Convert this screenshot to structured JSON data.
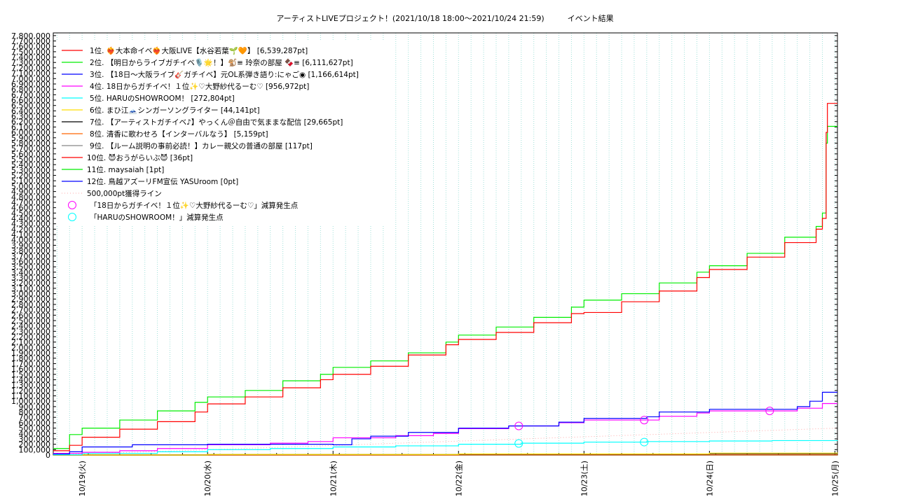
{
  "chart_data": {
    "type": "line",
    "title": "アーティストLIVEプロジェクト！(2021/10/18 18:00〜2021/10/24 21:59)　　　イベント結果",
    "xlabel": "",
    "ylabel": "",
    "ylim": [
      0,
      7850000
    ],
    "yticks_step": 100000,
    "grid": true,
    "legend_position": "top-left",
    "x_ticks": [
      "10/19(火)",
      "10/20(水)",
      "10/21(木)",
      "10/22(金)",
      "10/23(土)",
      "10/24(日)",
      "10/25(月)"
    ],
    "x_tick_positions": [
      1,
      2,
      3,
      4,
      5,
      6,
      7
    ],
    "xlim": [
      0.77,
      7.02
    ],
    "series": [
      {
        "name": "1位. ❤️‍🔥大本命イベ❤️‍🔥大阪LIVE【水谷若葉🌱🧡】 [6,539,287pt]",
        "color": "#ff0000",
        "points": [
          [
            0.77,
            80000
          ],
          [
            0.9,
            180000
          ],
          [
            1.0,
            330000
          ],
          [
            1.3,
            480000
          ],
          [
            1.6,
            620000
          ],
          [
            1.9,
            800000
          ],
          [
            2.0,
            950000
          ],
          [
            2.3,
            1080000
          ],
          [
            2.6,
            1250000
          ],
          [
            2.9,
            1400000
          ],
          [
            3.0,
            1500000
          ],
          [
            3.3,
            1650000
          ],
          [
            3.6,
            1860000
          ],
          [
            3.9,
            2050000
          ],
          [
            4.0,
            2150000
          ],
          [
            4.3,
            2280000
          ],
          [
            4.6,
            2460000
          ],
          [
            4.9,
            2630000
          ],
          [
            5.0,
            2650000
          ],
          [
            5.3,
            2850000
          ],
          [
            5.6,
            3050000
          ],
          [
            5.9,
            3300000
          ],
          [
            6.0,
            3450000
          ],
          [
            6.3,
            3680000
          ],
          [
            6.6,
            3950000
          ],
          [
            6.85,
            4200000
          ],
          [
            6.9,
            4400000
          ],
          [
            6.93,
            6000000
          ],
          [
            6.94,
            6539287
          ],
          [
            7.02,
            6539287
          ]
        ]
      },
      {
        "name": "2位. 【明日からライブガチイベ🎙️🌟！】🐒≡ 玲奈の部屋 🍫≡ [6,111,627pt]",
        "color": "#00ee00",
        "points": [
          [
            0.77,
            120000
          ],
          [
            0.9,
            380000
          ],
          [
            1.0,
            500000
          ],
          [
            1.3,
            650000
          ],
          [
            1.6,
            820000
          ],
          [
            1.9,
            980000
          ],
          [
            2.0,
            1080000
          ],
          [
            2.3,
            1200000
          ],
          [
            2.6,
            1380000
          ],
          [
            2.9,
            1500000
          ],
          [
            3.0,
            1630000
          ],
          [
            3.3,
            1750000
          ],
          [
            3.6,
            1900000
          ],
          [
            3.9,
            2100000
          ],
          [
            4.0,
            2230000
          ],
          [
            4.3,
            2380000
          ],
          [
            4.6,
            2560000
          ],
          [
            4.9,
            2750000
          ],
          [
            5.0,
            2880000
          ],
          [
            5.3,
            3000000
          ],
          [
            5.6,
            3200000
          ],
          [
            5.9,
            3400000
          ],
          [
            6.0,
            3520000
          ],
          [
            6.3,
            3750000
          ],
          [
            6.6,
            4050000
          ],
          [
            6.85,
            4250000
          ],
          [
            6.9,
            4500000
          ],
          [
            6.93,
            5800000
          ],
          [
            6.94,
            6111627
          ],
          [
            7.02,
            6111627
          ]
        ]
      },
      {
        "name": "3位. 【18日〜大阪ライブ🎸ガチイベ】元OL系弾き語り:にゃご◉ [1,166,614pt]",
        "color": "#0000ff",
        "points": [
          [
            0.77,
            20000
          ],
          [
            0.9,
            60000
          ],
          [
            1.0,
            150000
          ],
          [
            1.4,
            190000
          ],
          [
            2.0,
            200000
          ],
          [
            2.5,
            200000
          ],
          [
            3.0,
            190000
          ],
          [
            3.15,
            300000
          ],
          [
            3.3,
            350000
          ],
          [
            3.6,
            420000
          ],
          [
            4.0,
            500000
          ],
          [
            4.4,
            540000
          ],
          [
            4.8,
            610000
          ],
          [
            5.0,
            680000
          ],
          [
            5.5,
            710000
          ],
          [
            5.6,
            800000
          ],
          [
            6.0,
            850000
          ],
          [
            6.5,
            850000
          ],
          [
            6.7,
            900000
          ],
          [
            6.8,
            1000000
          ],
          [
            6.9,
            1166614
          ],
          [
            7.02,
            1166614
          ]
        ]
      },
      {
        "name": "4位. 18日からガチイベ！１位✨♡大野紗代るーむ♡ [956,972pt]",
        "color": "#ff00ff",
        "points": [
          [
            0.77,
            30000
          ],
          [
            1.0,
            50000
          ],
          [
            1.3,
            80000
          ],
          [
            1.6,
            120000
          ],
          [
            2.0,
            190000
          ],
          [
            2.5,
            220000
          ],
          [
            2.8,
            250000
          ],
          [
            3.0,
            320000
          ],
          [
            3.5,
            360000
          ],
          [
            3.8,
            400000
          ],
          [
            4.0,
            490000
          ],
          [
            4.4,
            540000
          ],
          [
            4.8,
            600000
          ],
          [
            5.0,
            650000
          ],
          [
            5.4,
            650000
          ],
          [
            5.6,
            720000
          ],
          [
            5.9,
            780000
          ],
          [
            6.0,
            820000
          ],
          [
            6.5,
            820000
          ],
          [
            6.7,
            870000
          ],
          [
            6.9,
            956972
          ],
          [
            7.02,
            956972
          ]
        ]
      },
      {
        "name": "5位. HARUのSHOWROOM！ [272,804pt]",
        "color": "#00ffff",
        "points": [
          [
            0.77,
            5000
          ],
          [
            1.0,
            30000
          ],
          [
            1.6,
            60000
          ],
          [
            2.0,
            100000
          ],
          [
            2.5,
            120000
          ],
          [
            3.0,
            150000
          ],
          [
            3.5,
            170000
          ],
          [
            4.0,
            200000
          ],
          [
            4.5,
            220000
          ],
          [
            5.0,
            240000
          ],
          [
            5.5,
            250000
          ],
          [
            6.0,
            260000
          ],
          [
            6.5,
            268000
          ],
          [
            7.02,
            272804
          ]
        ]
      },
      {
        "name": "6位. まひ江🗻シンガーソングライター [44,141pt]",
        "color": "#ffdd00",
        "points": [
          [
            0.77,
            0
          ],
          [
            2.0,
            10000
          ],
          [
            4.0,
            20000
          ],
          [
            6.0,
            35000
          ],
          [
            7.02,
            44141
          ]
        ]
      },
      {
        "name": "7位. 【アーティストガチイベ♪】やっくん＠自由で気ままな配信 [29,665pt]",
        "color": "#000000",
        "points": [
          [
            0.77,
            0
          ],
          [
            2.0,
            8000
          ],
          [
            4.0,
            15000
          ],
          [
            6.0,
            25000
          ],
          [
            7.02,
            29665
          ]
        ]
      },
      {
        "name": "8位. 清香に歌わせろ【インターバルなう】 [5,159pt]",
        "color": "#ff6600",
        "points": [
          [
            0.77,
            0
          ],
          [
            4.0,
            3000
          ],
          [
            7.02,
            5159
          ]
        ]
      },
      {
        "name": "9位. 【ルーム説明の事前必読！】カレー親父の普通の部屋 [117pt]",
        "color": "#888888",
        "points": [
          [
            0.77,
            0
          ],
          [
            7.02,
            117
          ]
        ]
      },
      {
        "name": "10位. 😈おうがらいぶ😈 [36pt]",
        "color": "#ff0000",
        "points": [
          [
            0.77,
            0
          ],
          [
            7.02,
            36
          ]
        ]
      },
      {
        "name": "11位. maysaiah [1pt]",
        "color": "#00ee00",
        "points": [
          [
            0.77,
            0
          ],
          [
            7.02,
            1
          ]
        ]
      },
      {
        "name": "12位. 鳥越アズーリFM宣伝 YASUroom [0pt]",
        "color": "#0000ff",
        "points": [
          [
            0.77,
            0
          ],
          [
            7.02,
            0
          ]
        ]
      }
    ],
    "reference_line": {
      "name": "500,000pt獲得ライン",
      "color": "#ffaaaa",
      "points": [
        [
          0.77,
          0
        ],
        [
          7.02,
          500000
        ]
      ]
    },
    "markers": [
      {
        "name": "「18日からガチイベ！１位✨♡大野紗代るーむ♡」減算発生点",
        "color": "#ff00ff",
        "points": [
          [
            4.48,
            540000
          ],
          [
            5.48,
            650000
          ],
          [
            6.48,
            820000
          ]
        ]
      },
      {
        "name": "「HARUのSHOWROOM！」減算発生点",
        "color": "#00ffff",
        "points": [
          [
            4.48,
            215000
          ],
          [
            5.48,
            240000
          ]
        ]
      }
    ]
  }
}
